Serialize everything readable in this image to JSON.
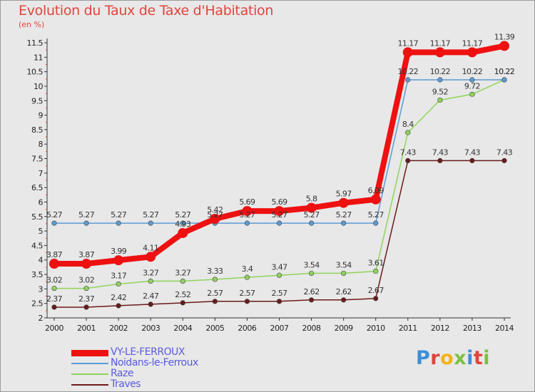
{
  "title": "Evolution du Taux de Taxe d'Habitation",
  "unit": "(en %)",
  "logo_letters": [
    {
      "ch": "P",
      "color": "#3b8fd8"
    },
    {
      "ch": "r",
      "color": "#e0453c"
    },
    {
      "ch": "o",
      "color": "#f2b31b"
    },
    {
      "ch": "x",
      "color": "#7cc142"
    },
    {
      "ch": "i",
      "color": "#3b8fd8"
    },
    {
      "ch": "t",
      "color": "#e0453c"
    },
    {
      "ch": "i",
      "color": "#7cc142"
    }
  ],
  "chart_data": {
    "type": "line",
    "title": "Evolution du Taux de Taxe d'Habitation",
    "ylabel": "(en %)",
    "xlabel": "",
    "ylim": [
      2,
      11.5
    ],
    "yticks": [
      "2",
      "2.5",
      "3",
      "3.5",
      "4",
      "4.5",
      "5",
      "5.5",
      "6",
      "6.5",
      "7",
      "7.5",
      "8",
      "8.5",
      "9",
      "9.5",
      "10",
      "10.5",
      "11",
      "11.5"
    ],
    "x": [
      "2000",
      "2001",
      "2002",
      "2003",
      "2004",
      "2005",
      "2006",
      "2007",
      "2008",
      "2009",
      "2010",
      "2011",
      "2012",
      "2013",
      "2014"
    ],
    "grid": false,
    "series": [
      {
        "name": "Traves",
        "color": "#6b1a1a",
        "values": [
          2.37,
          2.37,
          2.42,
          2.47,
          2.52,
          2.57,
          2.57,
          2.57,
          2.62,
          2.62,
          2.67,
          7.43,
          7.43,
          7.43,
          7.43
        ],
        "labels": [
          "2.37",
          "2.37",
          "2.42",
          "2.47",
          "2.52",
          "2.57",
          "2.57",
          "2.57",
          "2.62",
          "2.62",
          "2.67",
          "7.43",
          "7.43",
          "7.43",
          "7.43"
        ]
      },
      {
        "name": "Raze",
        "color": "#8fd45a",
        "values": [
          3.02,
          3.02,
          3.17,
          3.27,
          3.27,
          3.33,
          3.4,
          3.47,
          3.54,
          3.54,
          3.61,
          8.4,
          9.52,
          9.72,
          10.22
        ],
        "labels": [
          "3.02",
          "3.02",
          "3.17",
          "3.27",
          "3.27",
          "3.33",
          "3.4",
          "3.47",
          "3.54",
          "3.54",
          "3.61",
          "8.4",
          "9.52",
          "9.72",
          "10.22"
        ]
      },
      {
        "name": "Noidans-le-Ferroux",
        "color": "#5b9bd5",
        "values": [
          5.27,
          5.27,
          5.27,
          5.27,
          5.27,
          5.27,
          5.27,
          5.27,
          5.27,
          5.27,
          5.27,
          10.22,
          10.22,
          10.22,
          10.22
        ],
        "labels": [
          "5.27",
          "5.27",
          "5.27",
          "5.27",
          "5.27",
          "5.27",
          "5.27",
          "5.27",
          "5.27",
          "5.27",
          "5.27",
          "10.22",
          "10.22",
          "10.22",
          "10.22"
        ]
      },
      {
        "name": "VY-LE-FERROUX",
        "color": "#ee1111",
        "values": [
          3.87,
          3.87,
          3.99,
          4.11,
          4.93,
          5.42,
          5.69,
          5.69,
          5.8,
          5.97,
          6.09,
          11.17,
          11.17,
          11.17,
          11.39
        ],
        "labels": [
          "3.87",
          "3.87",
          "3.99",
          "4.11",
          "4.93",
          "5.42",
          "5.69",
          "5.69",
          "5.8",
          "5.97",
          "6.09",
          "11.17",
          "11.17",
          "11.17",
          "11.39"
        ]
      }
    ],
    "legend": [
      "VY-LE-FERROUX",
      "Noidans-le-Ferroux",
      "Raze",
      "Traves"
    ],
    "legend_position": "bottom-left"
  }
}
